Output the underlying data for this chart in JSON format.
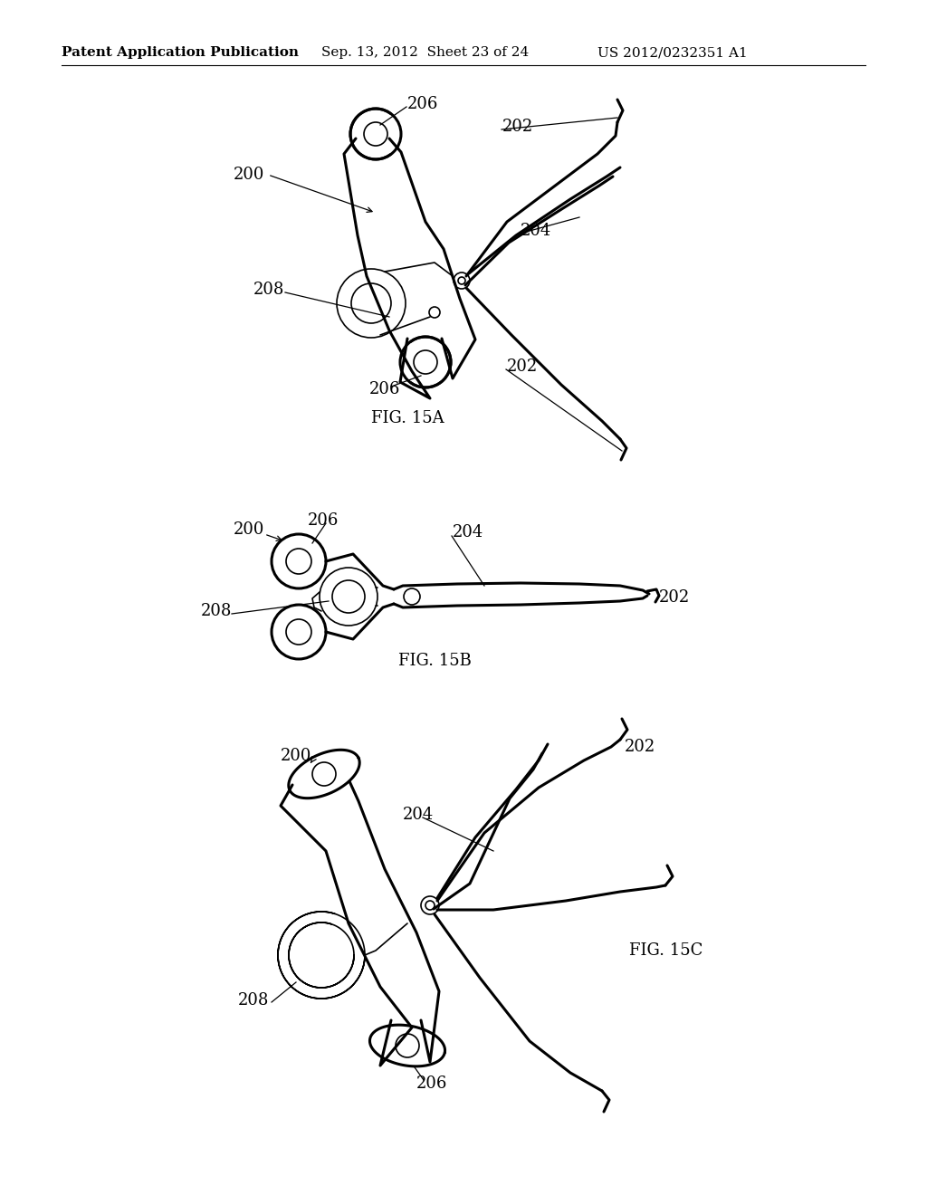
{
  "background_color": "#ffffff",
  "header_left": "Patent Application Publication",
  "header_mid": "Sep. 13, 2012  Sheet 23 of 24",
  "header_right": "US 2012/0232351 A1",
  "fig_a_label": "FIG. 15A",
  "fig_b_label": "FIG. 15B",
  "fig_c_label": "FIG. 15C",
  "line_color": "#000000",
  "lw_main": 2.2,
  "lw_thin": 1.2,
  "lw_header": 0.8,
  "font_size_header": 11,
  "font_size_label": 13,
  "font_size_fig": 13
}
